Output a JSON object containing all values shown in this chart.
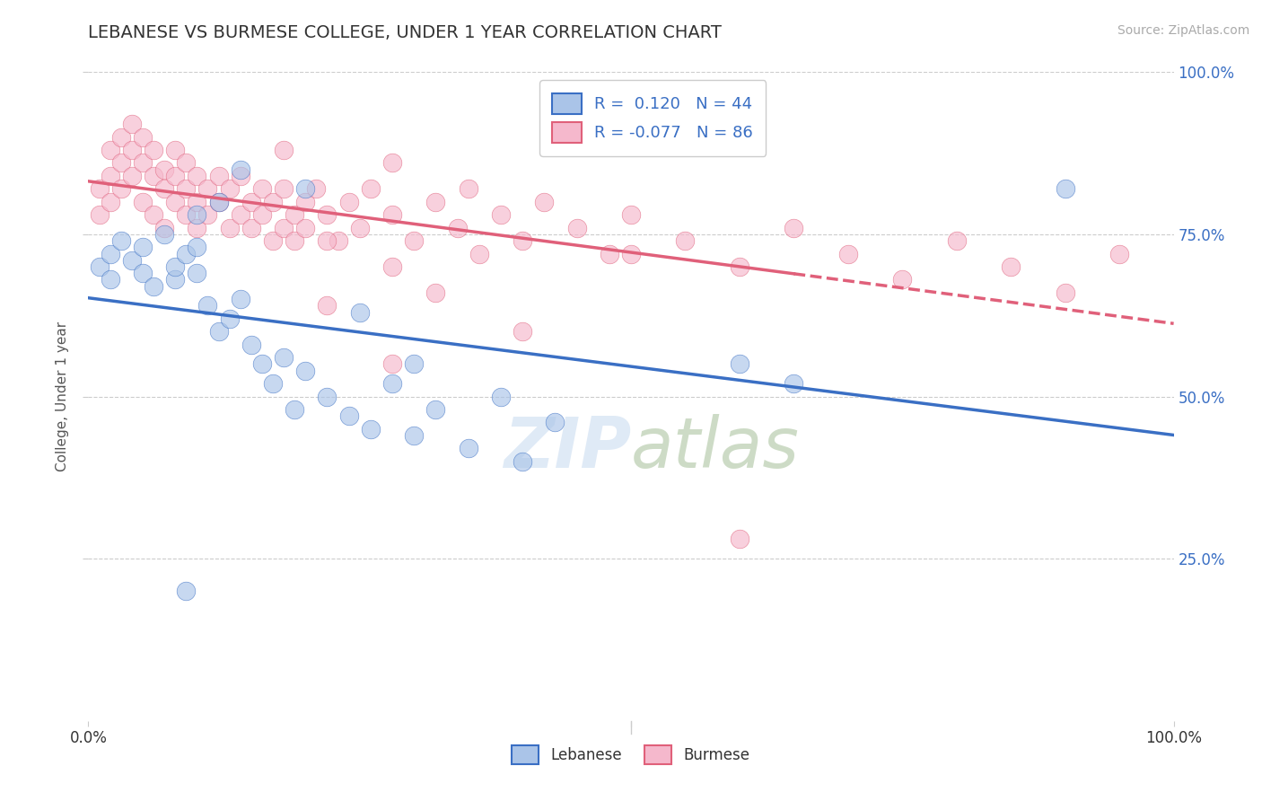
{
  "title": "LEBANESE VS BURMESE COLLEGE, UNDER 1 YEAR CORRELATION CHART",
  "source_text": "Source: ZipAtlas.com",
  "ylabel": "College, Under 1 year",
  "xlim": [
    0.0,
    1.0
  ],
  "ylim": [
    0.0,
    1.0
  ],
  "grid_color": "#cccccc",
  "background_color": "#ffffff",
  "lebanese_color": "#aac4e8",
  "burmese_color": "#f5b8cc",
  "lebanese_line_color": "#3a6fc4",
  "burmese_line_color": "#e0607a",
  "R_lebanese": 0.12,
  "N_lebanese": 44,
  "R_burmese": -0.077,
  "N_burmese": 86,
  "leb_x": [
    0.01,
    0.02,
    0.02,
    0.03,
    0.04,
    0.05,
    0.05,
    0.06,
    0.07,
    0.08,
    0.08,
    0.09,
    0.1,
    0.1,
    0.11,
    0.12,
    0.13,
    0.14,
    0.15,
    0.16,
    0.17,
    0.18,
    0.19,
    0.2,
    0.22,
    0.24,
    0.26,
    0.28,
    0.3,
    0.32,
    0.35,
    0.38,
    0.4,
    0.43,
    0.1,
    0.12,
    0.14,
    0.2,
    0.25,
    0.3,
    0.6,
    0.65,
    0.9,
    0.09
  ],
  "leb_y": [
    0.7,
    0.72,
    0.68,
    0.74,
    0.71,
    0.69,
    0.73,
    0.67,
    0.75,
    0.68,
    0.7,
    0.72,
    0.73,
    0.69,
    0.64,
    0.6,
    0.62,
    0.65,
    0.58,
    0.55,
    0.52,
    0.56,
    0.48,
    0.54,
    0.5,
    0.47,
    0.45,
    0.52,
    0.44,
    0.48,
    0.42,
    0.5,
    0.4,
    0.46,
    0.78,
    0.8,
    0.85,
    0.82,
    0.63,
    0.55,
    0.55,
    0.52,
    0.82,
    0.2
  ],
  "bur_x": [
    0.01,
    0.01,
    0.02,
    0.02,
    0.02,
    0.03,
    0.03,
    0.03,
    0.04,
    0.04,
    0.04,
    0.05,
    0.05,
    0.05,
    0.06,
    0.06,
    0.06,
    0.07,
    0.07,
    0.07,
    0.08,
    0.08,
    0.08,
    0.09,
    0.09,
    0.09,
    0.1,
    0.1,
    0.1,
    0.11,
    0.11,
    0.12,
    0.12,
    0.13,
    0.13,
    0.14,
    0.14,
    0.15,
    0.15,
    0.16,
    0.16,
    0.17,
    0.17,
    0.18,
    0.18,
    0.19,
    0.19,
    0.2,
    0.2,
    0.21,
    0.22,
    0.23,
    0.24,
    0.25,
    0.26,
    0.28,
    0.3,
    0.32,
    0.34,
    0.35,
    0.38,
    0.4,
    0.42,
    0.45,
    0.48,
    0.5,
    0.55,
    0.6,
    0.65,
    0.7,
    0.75,
    0.8,
    0.85,
    0.9,
    0.95,
    0.32,
    0.36,
    0.22,
    0.28,
    0.5,
    0.18,
    0.28,
    0.4,
    0.6,
    0.22,
    0.28
  ],
  "bur_y": [
    0.82,
    0.78,
    0.84,
    0.8,
    0.88,
    0.86,
    0.82,
    0.9,
    0.84,
    0.88,
    0.92,
    0.86,
    0.9,
    0.8,
    0.84,
    0.88,
    0.78,
    0.85,
    0.82,
    0.76,
    0.88,
    0.84,
    0.8,
    0.86,
    0.82,
    0.78,
    0.84,
    0.8,
    0.76,
    0.82,
    0.78,
    0.84,
    0.8,
    0.76,
    0.82,
    0.78,
    0.84,
    0.8,
    0.76,
    0.82,
    0.78,
    0.74,
    0.8,
    0.76,
    0.82,
    0.78,
    0.74,
    0.8,
    0.76,
    0.82,
    0.78,
    0.74,
    0.8,
    0.76,
    0.82,
    0.78,
    0.74,
    0.8,
    0.76,
    0.82,
    0.78,
    0.74,
    0.8,
    0.76,
    0.72,
    0.78,
    0.74,
    0.7,
    0.76,
    0.72,
    0.68,
    0.74,
    0.7,
    0.66,
    0.72,
    0.66,
    0.72,
    0.74,
    0.7,
    0.72,
    0.88,
    0.86,
    0.6,
    0.28,
    0.64,
    0.55
  ],
  "watermark": "ZIPatlas"
}
